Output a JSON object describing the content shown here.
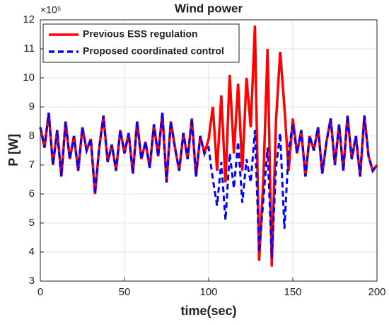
{
  "chart_data": {
    "type": "line",
    "title": "Wind power",
    "x_label": "time(sec)",
    "y_label": "P [W]",
    "y_multiplier": "×10⁵",
    "x": [
      0,
      2.5,
      5,
      7.5,
      10,
      12.5,
      15,
      17.5,
      20,
      22.5,
      25,
      27.5,
      30,
      32.5,
      35,
      37.5,
      40,
      42.5,
      45,
      47.5,
      50,
      52.5,
      55,
      57.5,
      60,
      62.5,
      65,
      67.5,
      70,
      72.5,
      75,
      77.5,
      80,
      82.5,
      85,
      87.5,
      90,
      92.5,
      95,
      97.5,
      100,
      102.5,
      105,
      107.5,
      110,
      112.5,
      115,
      117.5,
      120,
      122.5,
      125,
      127.5,
      130,
      132.5,
      135,
      137.5,
      140,
      142.5,
      145,
      147.5,
      150,
      152.5,
      155,
      157.5,
      160,
      162.5,
      165,
      167.5,
      170,
      172.5,
      175,
      177.5,
      180,
      182.5,
      185,
      187.5,
      190,
      192.5,
      195,
      197.5,
      200
    ],
    "series": [
      {
        "name": "Previous ESS regulation",
        "color": "#ff0000",
        "dash": false,
        "values": [
          8.3,
          7.6,
          8.8,
          7.0,
          8.2,
          6.6,
          8.5,
          7.2,
          8.0,
          6.8,
          8.3,
          7.5,
          7.9,
          6.0,
          7.6,
          8.7,
          7.1,
          7.7,
          6.8,
          8.2,
          7.4,
          8.1,
          6.7,
          8.5,
          7.2,
          7.8,
          6.9,
          8.4,
          7.3,
          8.8,
          6.4,
          8.5,
          7.6,
          6.8,
          8.1,
          7.2,
          8.6,
          6.6,
          8.0,
          7.4,
          7.9,
          9.0,
          6.8,
          9.4,
          6.4,
          10.1,
          7.4,
          9.8,
          6.8,
          10.0,
          8.3,
          11.8,
          3.7,
          6.5,
          11.0,
          3.5,
          8.5,
          10.9,
          9.0,
          6.8,
          8.6,
          7.4,
          8.2,
          6.6,
          8.0,
          7.5,
          8.3,
          6.7,
          7.8,
          8.6,
          7.0,
          8.4,
          6.8,
          8.7,
          7.2,
          8.0,
          6.6,
          8.7,
          7.3,
          6.8,
          7.0
        ]
      },
      {
        "name": "Proposed coordinated control",
        "color": "#0000ff",
        "dash": true,
        "values": [
          8.3,
          7.6,
          8.8,
          7.0,
          8.2,
          6.6,
          8.5,
          7.2,
          8.0,
          6.8,
          8.3,
          7.5,
          7.9,
          6.0,
          7.6,
          8.7,
          7.1,
          7.7,
          6.8,
          8.2,
          7.4,
          8.1,
          6.7,
          8.5,
          7.2,
          7.8,
          6.9,
          8.4,
          7.3,
          8.8,
          6.4,
          8.5,
          7.6,
          6.8,
          8.1,
          7.2,
          8.6,
          6.6,
          8.0,
          7.4,
          7.6,
          6.5,
          5.6,
          7.1,
          5.1,
          7.4,
          6.2,
          7.8,
          5.7,
          7.2,
          6.4,
          8.2,
          4.0,
          5.8,
          7.6,
          3.8,
          6.9,
          8.1,
          4.8,
          7.5,
          8.4,
          7.4,
          8.2,
          6.6,
          8.0,
          7.5,
          8.3,
          6.7,
          7.8,
          8.6,
          7.0,
          8.4,
          6.8,
          8.7,
          7.2,
          8.0,
          6.6,
          8.7,
          7.3,
          6.8,
          7.0
        ]
      }
    ],
    "xlim": [
      0,
      200
    ],
    "xticks": [
      0,
      50,
      100,
      150,
      200
    ],
    "ylim": [
      3,
      12
    ],
    "yticks": [
      3,
      4,
      5,
      6,
      7,
      8,
      9,
      10,
      11,
      12
    ],
    "grid": true,
    "legend": "northwest"
  }
}
